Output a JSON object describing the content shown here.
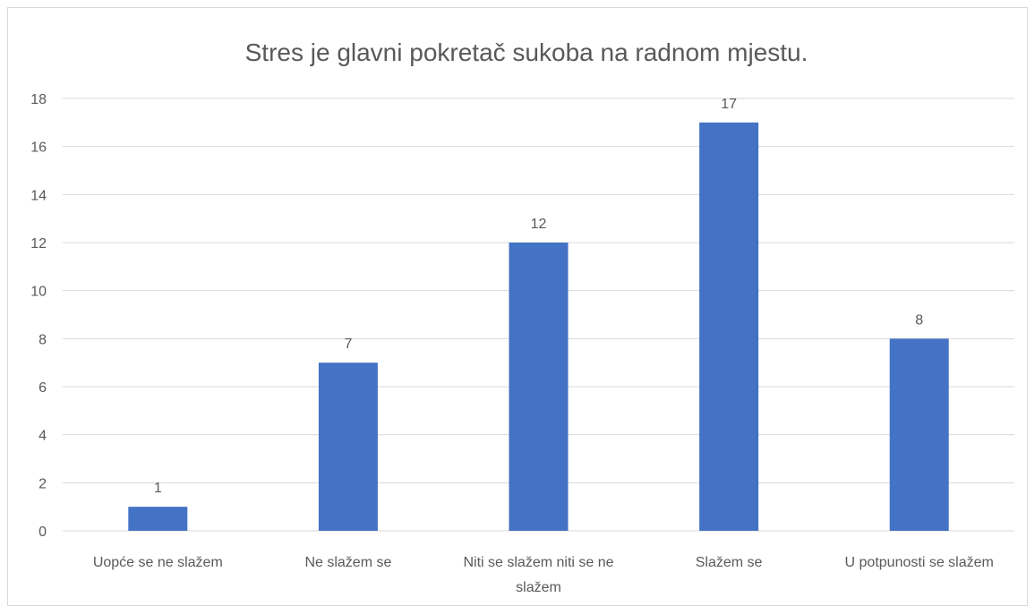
{
  "chart_data": {
    "type": "bar",
    "title": "Stres je glavni pokretač sukoba na radnom mjestu.",
    "categories": [
      "Uopće se ne slažem",
      "Ne slažem se",
      "Niti se slažem niti se ne slažem",
      "Slažem se",
      "U potpunosti se slažem"
    ],
    "values": [
      1,
      7,
      12,
      17,
      8
    ],
    "color": "#4472c4",
    "ylim": [
      0,
      18
    ],
    "yticks": [
      0,
      2,
      4,
      6,
      8,
      10,
      12,
      14,
      16,
      18
    ],
    "grid": true,
    "data_labels": true
  }
}
